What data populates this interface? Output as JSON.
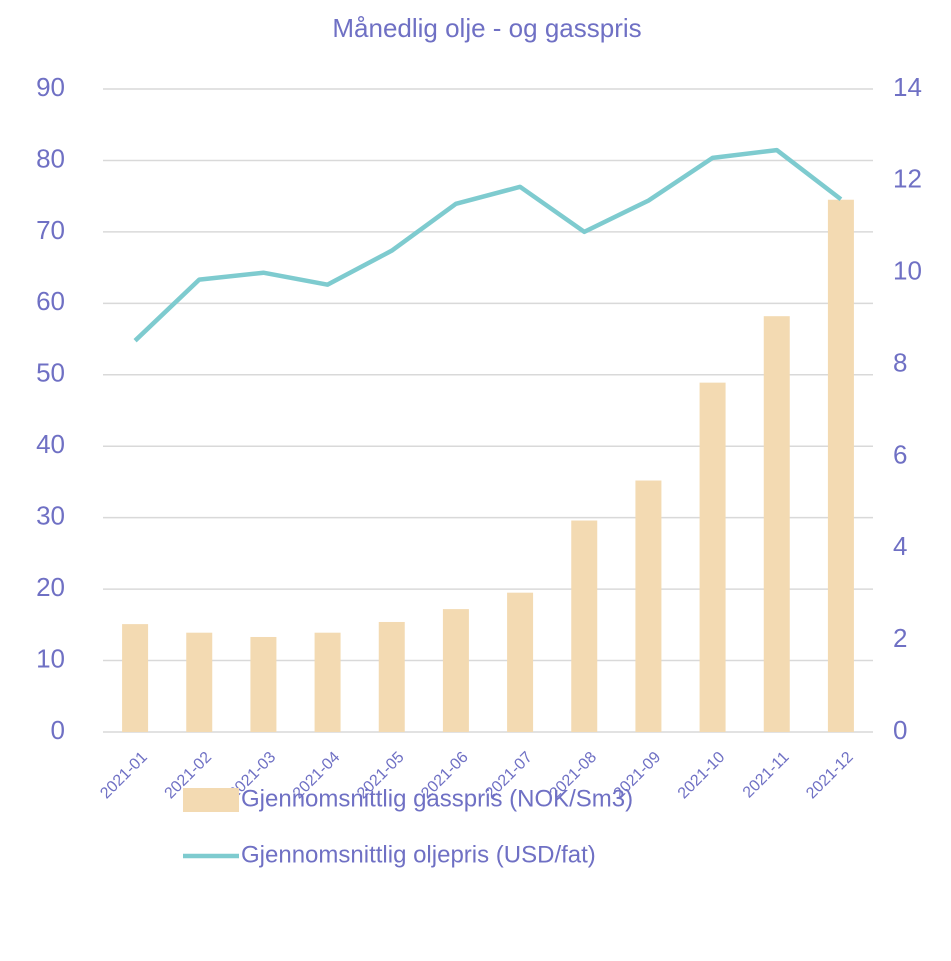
{
  "chart_data": {
    "type": "bar",
    "title": "Månedlig olje - og gasspris",
    "categories": [
      "2021-01",
      "2021-02",
      "2021-03",
      "2021-04",
      "2021-05",
      "2021-06",
      "2021-07",
      "2021-08",
      "2021-09",
      "2021-10",
      "2021-11",
      "2021-12"
    ],
    "series": [
      {
        "name": "Gjennomsnittlig gasspris (NOK/Sm3)",
        "type": "bar",
        "axis": "y",
        "color": "#f3dab2",
        "values": [
          15.1,
          13.9,
          13.3,
          13.9,
          15.4,
          17.2,
          19.5,
          29.6,
          35.2,
          48.9,
          58.2,
          74.5
        ]
      },
      {
        "name": "Gjennomsnittlig oljepris (USD/fat)",
        "type": "line",
        "axis": "y2",
        "color": "#7ecbcf",
        "values": [
          8.52,
          9.85,
          10.0,
          9.74,
          10.48,
          11.5,
          11.87,
          10.89,
          11.57,
          12.5,
          12.67,
          11.6
        ]
      }
    ],
    "ylim": [
      0,
      90
    ],
    "yticks": [
      0,
      10,
      20,
      30,
      40,
      50,
      60,
      70,
      80,
      90
    ],
    "y2lim": [
      0,
      14
    ],
    "y2ticks": [
      0,
      2,
      4,
      6,
      8,
      10,
      12,
      14
    ],
    "grid": true
  }
}
